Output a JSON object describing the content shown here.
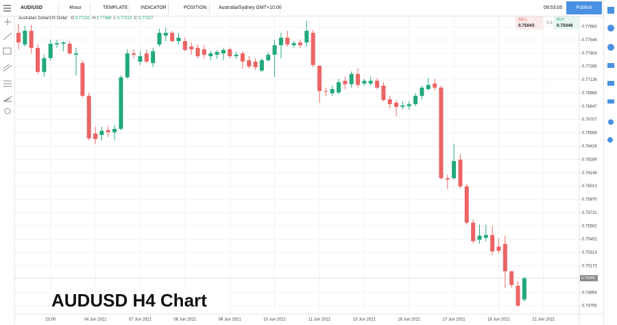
{
  "toolbar": {
    "symbol": "AUD/USD",
    "interval": "4hour",
    "template": "TEMPLATE",
    "indicator": "INDICATOR",
    "position": "POSITION",
    "timezone": "Australia/Sydney GMT+10:00",
    "clock": "09:53:05",
    "publish": "Publish"
  },
  "legend_bar": {
    "name": "Australian Dollar/US Dollar",
    "o_label": "O",
    "o": "0.77231",
    "h_label": "H",
    "h": "0.77368",
    "l_label": "L",
    "l": "0.77222",
    "c_label": "C",
    "c": "0.77327"
  },
  "quote": {
    "sell_label": "SELL",
    "sell": "0.75043",
    "spread": "0.5",
    "buy_label": "BUY",
    "buy": "0.75048"
  },
  "chart_data": {
    "type": "candlestick",
    "title": "AUDUSD H4 Chart",
    "categories": [
      null,
      null,
      null,
      null,
      null,
      "23:00",
      null,
      null,
      null,
      null,
      null,
      null,
      "04 Jun 2021",
      null,
      null,
      null,
      null,
      null,
      null,
      "07 Jun 2021",
      null,
      null,
      null,
      null,
      null,
      null,
      "08 Jun 2021",
      null,
      null,
      null,
      null,
      null,
      null,
      "09 Jun 2021",
      null,
      null,
      null,
      null,
      null,
      null,
      "10 Jun 2021",
      null,
      null,
      null,
      null,
      null,
      null,
      "11 Jun 2021",
      null,
      null,
      null,
      null,
      null,
      null,
      "15 Jun 2021",
      null,
      null,
      null,
      null,
      null,
      null,
      "16 Jun 2021",
      null,
      null,
      null,
      null,
      null,
      null,
      "17 Jun 2021",
      null,
      null,
      null,
      null,
      null,
      null,
      "18 Jun 2021",
      null,
      null,
      null,
      null,
      null,
      null,
      "21 Jun 2021"
    ],
    "open": [
      0.77619,
      0.77497,
      0.7764,
      0.77461,
      0.77209,
      0.77353,
      0.77497,
      0.77504,
      0.77504,
      0.77389,
      0.77302,
      0.76958,
      0.76562,
      0.76548,
      0.76598,
      0.76576,
      0.76612,
      0.77152,
      0.77403,
      0.77317,
      0.77403,
      0.77302,
      0.77497,
      0.7759,
      0.77619,
      0.77532,
      0.77532,
      0.77475,
      0.77461,
      0.77446,
      0.77374,
      0.77389,
      0.77403,
      0.77446,
      0.77374,
      0.77403,
      0.77331,
      0.77317,
      0.77223,
      0.77331,
      0.77389,
      0.77489,
      0.77568,
      0.77489,
      0.77518,
      0.77518,
      0.77619,
      0.77274,
      0.77008,
      0.76986,
      0.76993,
      0.77116,
      0.7708,
      0.77188,
      0.77087,
      0.77087,
      0.77116,
      0.77065,
      0.76922,
      0.76886,
      0.76842,
      0.7685,
      0.76871,
      0.76958,
      0.77029,
      0.77087,
      0.77044,
      0.76094,
      0.76094,
      0.76289,
      0.76008,
      0.75627,
      0.75448,
      0.75469,
      0.75498,
      0.75376,
      0.75404,
      0.75117,
      0.74966,
      0.74822,
      null,
      null,
      null
    ],
    "high": [
      0.77712,
      0.77691,
      0.77705,
      0.77497,
      0.77389,
      0.77547,
      0.77547,
      0.77532,
      0.77532,
      0.77461,
      0.77331,
      0.76993,
      0.76634,
      0.76634,
      0.76641,
      0.76655,
      0.77173,
      0.77446,
      0.77446,
      0.77425,
      0.77446,
      0.77461,
      0.77662,
      0.77676,
      0.7764,
      0.77619,
      0.77568,
      0.77518,
      0.77497,
      0.77489,
      0.77432,
      0.77439,
      0.77461,
      0.77461,
      0.77418,
      0.77425,
      0.77374,
      0.77353,
      0.77353,
      0.77418,
      0.77547,
      0.77619,
      0.7764,
      0.77532,
      0.77547,
      0.77748,
      0.77648,
      0.77281,
      0.77044,
      0.77065,
      0.77137,
      0.77159,
      0.77216,
      0.77245,
      0.77137,
      0.77159,
      0.77144,
      0.77101,
      0.76958,
      0.76914,
      0.769,
      0.769,
      0.76986,
      0.77065,
      0.77144,
      0.77137,
      0.77065,
      0.7613,
      0.76454,
      0.76346,
      0.76037,
      0.75663,
      0.75606,
      0.75606,
      0.75591,
      0.75462,
      0.75491,
      0.75124,
      0.75016,
      0.75059,
      null,
      null,
      null
    ],
    "low": [
      0.77446,
      0.77475,
      0.77403,
      0.77188,
      0.77159,
      0.77331,
      0.77461,
      0.77425,
      0.77389,
      0.77173,
      0.76943,
      0.7649,
      0.76454,
      0.7649,
      0.76526,
      0.7649,
      0.76598,
      0.77137,
      0.77353,
      0.77281,
      0.77302,
      0.77259,
      0.77475,
      0.77532,
      0.77518,
      0.77497,
      0.77425,
      0.77389,
      0.77353,
      0.77353,
      0.77331,
      0.77346,
      0.77331,
      0.77353,
      0.77346,
      0.77245,
      0.77245,
      0.77231,
      0.77209,
      0.77317,
      0.77159,
      0.77353,
      0.77475,
      0.77461,
      0.77461,
      0.77475,
      0.77259,
      0.76886,
      0.76958,
      0.76958,
      0.76972,
      0.77029,
      0.77044,
      0.77044,
      0.77065,
      0.77065,
      0.77029,
      0.769,
      0.76828,
      0.76742,
      0.76814,
      0.76814,
      0.7685,
      0.76922,
      0.77015,
      0.77015,
      0.7608,
      0.7598,
      0.7608,
      0.75987,
      0.75606,
      0.75412,
      0.75404,
      0.75433,
      0.75289,
      0.75304,
      0.74944,
      0.74944,
      0.74743,
      0.748,
      null,
      null,
      null
    ],
    "close": [
      0.77518,
      0.7764,
      0.77461,
      0.77209,
      0.77353,
      0.77504,
      0.77511,
      0.77518,
      0.77403,
      0.77403,
      0.76958,
      0.76512,
      0.76504,
      0.76591,
      0.76576,
      0.76612,
      0.77152,
      0.77403,
      0.77389,
      0.77374,
      0.77317,
      0.77425,
      0.77619,
      0.77619,
      0.77532,
      0.77568,
      0.77439,
      0.77446,
      0.77374,
      0.77389,
      0.77403,
      0.77418,
      0.77439,
      0.77374,
      0.77389,
      0.77317,
      0.77267,
      0.77259,
      0.77331,
      0.77389,
      0.77489,
      0.77568,
      0.77497,
      0.77511,
      0.77489,
      0.7764,
      0.77281,
      0.77008,
      0.77001,
      0.77029,
      0.77101,
      0.7708,
      0.77188,
      0.77073,
      0.77116,
      0.77116,
      0.77044,
      0.76914,
      0.76871,
      0.76842,
      0.76857,
      0.76871,
      0.76958,
      0.77044,
      0.77073,
      0.77044,
      0.76094,
      0.7608,
      0.76274,
      0.76008,
      0.75627,
      0.75433,
      0.75491,
      0.75498,
      0.75325,
      0.75332,
      0.75117,
      0.74973,
      0.74757,
      0.75045,
      null,
      null,
      null
    ],
    "up_color": "#22a97b",
    "down_color": "#ec6464",
    "ylim": [
      0.74669,
      0.77762
    ],
    "yticks": [
      0.77683,
      0.77544,
      0.77404,
      0.77265,
      0.77126,
      0.76986,
      0.76847,
      0.76707,
      0.76568,
      0.76428,
      0.76289,
      0.76149,
      {
        "value": 0.7601,
        "label": "0.76010"
      },
      {
        "value": 0.7587,
        "label": "0.75870"
      },
      0.75731,
      0.75592,
      0.75452,
      0.75313,
      0.75173,
      0.74894,
      0.74755
    ],
    "current_price": 0.75045,
    "grid": true
  }
}
